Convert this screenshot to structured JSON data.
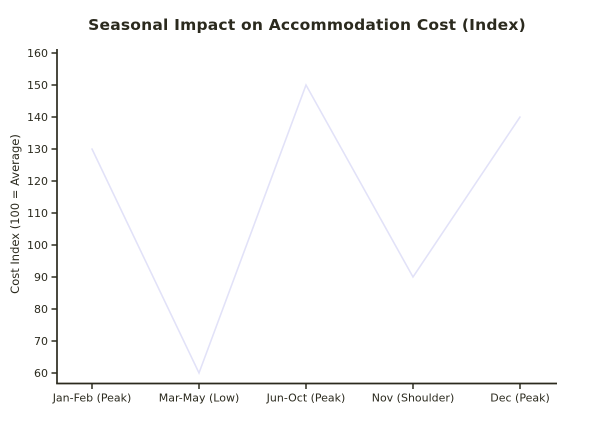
{
  "chart_data": {
    "type": "line",
    "title": "Seasonal Impact on Accommodation Cost (Index)",
    "xlabel": "",
    "ylabel": "Cost Index (100 = Average)",
    "categories": [
      "Jan-Feb (Peak)",
      "Mar-May (Low)",
      "Jun-Oct (Peak)",
      "Nov (Shoulder)",
      "Dec (Peak)"
    ],
    "values": [
      130,
      60,
      150,
      90,
      140
    ],
    "ylim": [
      60,
      160
    ],
    "ytick_step": 10,
    "ytick_labels": [
      "60",
      "70",
      "80",
      "90",
      "100",
      "110",
      "120",
      "130",
      "140",
      "150",
      "160"
    ],
    "grid": false,
    "legend_position": "none",
    "colors": {
      "line": "#e2e2f8",
      "axis": "#2b2a1e",
      "text": "#2b2a1e",
      "background": "#ffffff"
    }
  }
}
